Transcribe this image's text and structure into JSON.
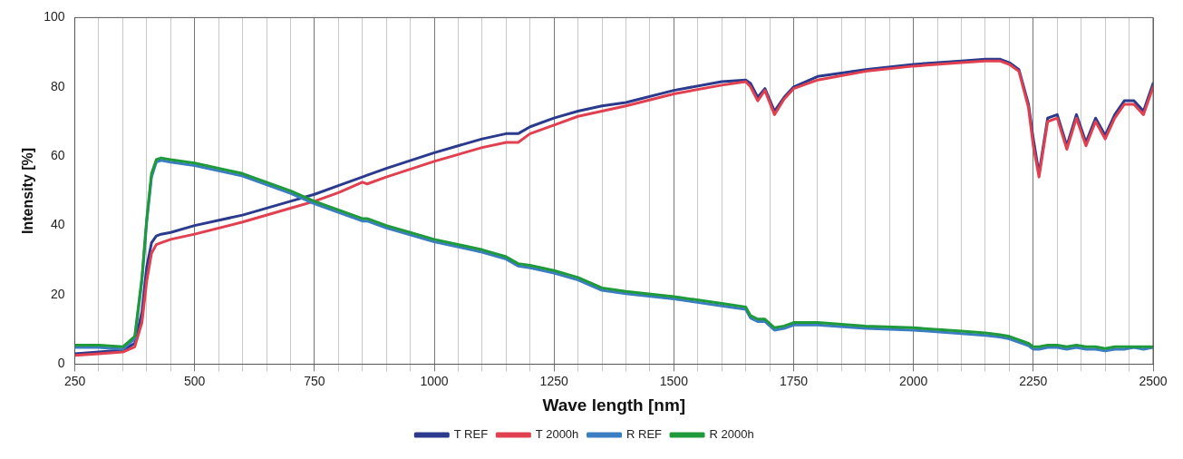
{
  "chart_data": {
    "type": "line",
    "xlabel": "Wave length [nm]",
    "ylabel": "Intensity [%]",
    "x": [
      250,
      300,
      350,
      375,
      390,
      400,
      410,
      420,
      430,
      450,
      500,
      600,
      700,
      750,
      800,
      850,
      860,
      900,
      1000,
      1100,
      1150,
      1175,
      1200,
      1250,
      1300,
      1350,
      1400,
      1500,
      1600,
      1650,
      1660,
      1675,
      1690,
      1710,
      1730,
      1750,
      1800,
      1900,
      2000,
      2100,
      2150,
      2180,
      2200,
      2220,
      2240,
      2250,
      2262,
      2280,
      2300,
      2320,
      2340,
      2360,
      2380,
      2400,
      2420,
      2440,
      2460,
      2480,
      2500
    ],
    "series": [
      {
        "name": "T REF",
        "color": "#2b3a8c",
        "values": [
          3,
          3.5,
          4,
          6,
          15,
          28,
          35,
          37,
          37.5,
          38,
          40,
          43,
          47,
          49,
          51.5,
          54,
          54.5,
          56.5,
          61,
          65,
          66.5,
          66.5,
          68.5,
          71,
          73,
          74.5,
          75.5,
          79,
          81.5,
          82,
          81,
          77,
          79.5,
          73,
          77,
          80,
          83,
          85,
          86.5,
          87.5,
          88,
          88,
          87,
          85,
          75,
          65,
          55,
          71,
          72,
          63,
          72,
          64,
          71,
          66,
          72,
          76,
          76,
          73,
          81
        ]
      },
      {
        "name": "T 2000h",
        "color": "#e0404f",
        "values": [
          2.5,
          3,
          3.5,
          5,
          12,
          24,
          32,
          34.5,
          35,
          36,
          37.5,
          41,
          45,
          47,
          49.5,
          52.5,
          52,
          54,
          58.5,
          62.5,
          64,
          64,
          66.5,
          69,
          71.5,
          73,
          74.5,
          78,
          80.5,
          81.5,
          80,
          76,
          79,
          72,
          76.5,
          79.5,
          82,
          84.5,
          86,
          87,
          87.5,
          87.5,
          86.5,
          84.5,
          74,
          63,
          54,
          70,
          71,
          62,
          71,
          63,
          70,
          65,
          71,
          75,
          75,
          72,
          80
        ]
      },
      {
        "name": "R REF",
        "color": "#3a7dc0",
        "values": [
          4.8,
          4.8,
          4.3,
          7.3,
          24,
          41,
          54,
          58.3,
          58.8,
          58.3,
          57.3,
          54.3,
          49.3,
          46.3,
          43.8,
          41.3,
          41.3,
          39.3,
          35.3,
          32.3,
          30.3,
          28.3,
          27.8,
          26.3,
          24.3,
          21.3,
          20.3,
          18.8,
          16.8,
          15.8,
          13.3,
          12.3,
          12.3,
          9.8,
          10.3,
          11.3,
          11.3,
          10.3,
          9.8,
          8.8,
          8.3,
          7.8,
          7.3,
          6.3,
          5.3,
          4.3,
          4.3,
          4.8,
          4.8,
          4.3,
          4.8,
          4.3,
          4.3,
          3.8,
          4.3,
          4.3,
          4.8,
          4.3,
          4.8
        ]
      },
      {
        "name": "R 2000h",
        "color": "#1f9a3a",
        "values": [
          5.5,
          5.5,
          5,
          8,
          25,
          42,
          55,
          59,
          59.5,
          59,
          58,
          55,
          50,
          47,
          44.5,
          42,
          42,
          40,
          36,
          33,
          31,
          29,
          28.5,
          27,
          25,
          22,
          21,
          19.5,
          17.5,
          16.5,
          14,
          13,
          13,
          10.5,
          11,
          12,
          12,
          11,
          10.5,
          9.5,
          9,
          8.5,
          8,
          7,
          6,
          5,
          5,
          5.5,
          5.5,
          5,
          5.5,
          5,
          5,
          4.5,
          5,
          5,
          5,
          5,
          5
        ]
      }
    ],
    "xlim": [
      250,
      2500
    ],
    "xticks": [
      250,
      {
        "value": 300,
        "label": null
      },
      {
        "value": 350,
        "label": null
      },
      {
        "value": 400,
        "label": null
      },
      {
        "value": 450,
        "label": null
      },
      500,
      {
        "value": 550,
        "label": null
      },
      {
        "value": 600,
        "label": null
      },
      {
        "value": 650,
        "label": null
      },
      {
        "value": 700,
        "label": null
      },
      750,
      {
        "value": 800,
        "label": null
      },
      {
        "value": 850,
        "label": null
      },
      {
        "value": 900,
        "label": null
      },
      {
        "value": 950,
        "label": null
      },
      1000,
      {
        "value": 1050,
        "label": null
      },
      {
        "value": 1100,
        "label": null
      },
      {
        "value": 1150,
        "label": null
      },
      {
        "value": 1200,
        "label": null
      },
      1250,
      {
        "value": 1300,
        "label": null
      },
      {
        "value": 1350,
        "label": null
      },
      {
        "value": 1400,
        "label": null
      },
      {
        "value": 1450,
        "label": null
      },
      1500,
      {
        "value": 1550,
        "label": null
      },
      {
        "value": 1600,
        "label": null
      },
      {
        "value": 1650,
        "label": null
      },
      {
        "value": 1700,
        "label": null
      },
      1750,
      {
        "value": 1800,
        "label": null
      },
      {
        "value": 1850,
        "label": null
      },
      {
        "value": 1900,
        "label": null
      },
      {
        "value": 1950,
        "label": null
      },
      2000,
      {
        "value": 2050,
        "label": null
      },
      {
        "value": 2100,
        "label": null
      },
      {
        "value": 2150,
        "label": null
      },
      {
        "value": 2200,
        "label": null
      },
      2250,
      {
        "value": 2300,
        "label": null
      },
      {
        "value": 2350,
        "label": null
      },
      {
        "value": 2400,
        "label": null
      },
      {
        "value": 2450,
        "label": null
      },
      2500
    ],
    "ylim": [
      0,
      100
    ],
    "yticks": [
      0,
      20,
      40,
      60,
      80,
      100
    ],
    "grid": "x",
    "legend": "bottom",
    "marker": "none",
    "line_style": "solid"
  }
}
